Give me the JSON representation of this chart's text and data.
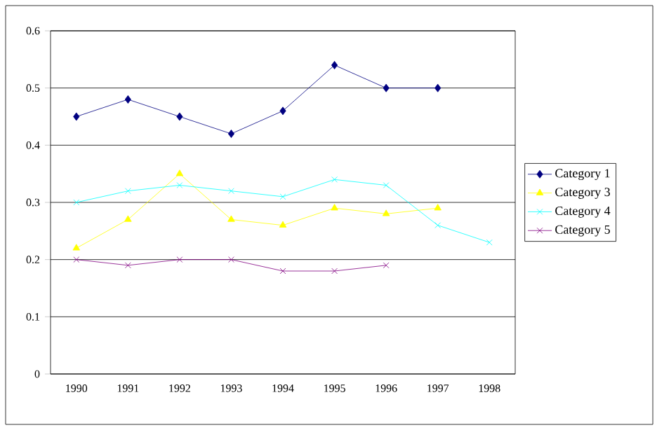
{
  "chart_data": {
    "type": "line",
    "categories": [
      "1990",
      "1991",
      "1992",
      "1993",
      "1994",
      "1995",
      "1996",
      "1997",
      "1998"
    ],
    "series": [
      {
        "name": "Category 1",
        "color": "#000080",
        "marker": "diamond",
        "values": [
          0.45,
          0.48,
          0.45,
          0.42,
          0.46,
          0.54,
          0.5,
          0.5,
          null
        ]
      },
      {
        "name": "Category 3",
        "color": "#ffff00",
        "marker": "triangle",
        "values": [
          0.22,
          0.27,
          0.35,
          0.27,
          0.26,
          0.29,
          0.28,
          0.29,
          null
        ]
      },
      {
        "name": "Category 4",
        "color": "#00ffff",
        "marker": "cross",
        "values": [
          0.3,
          0.32,
          0.33,
          0.32,
          0.31,
          0.34,
          0.33,
          0.26,
          0.23
        ]
      },
      {
        "name": "Category 5",
        "color": "#800080",
        "marker": "cross",
        "values": [
          0.2,
          0.19,
          0.2,
          0.2,
          0.18,
          0.18,
          0.19,
          null,
          null
        ]
      }
    ],
    "ylim": [
      0,
      0.6
    ],
    "yticks": [
      0,
      0.1,
      0.2,
      0.3,
      0.4,
      0.5,
      0.6
    ],
    "grid": "y",
    "legend": "right",
    "line_style": "solid"
  }
}
